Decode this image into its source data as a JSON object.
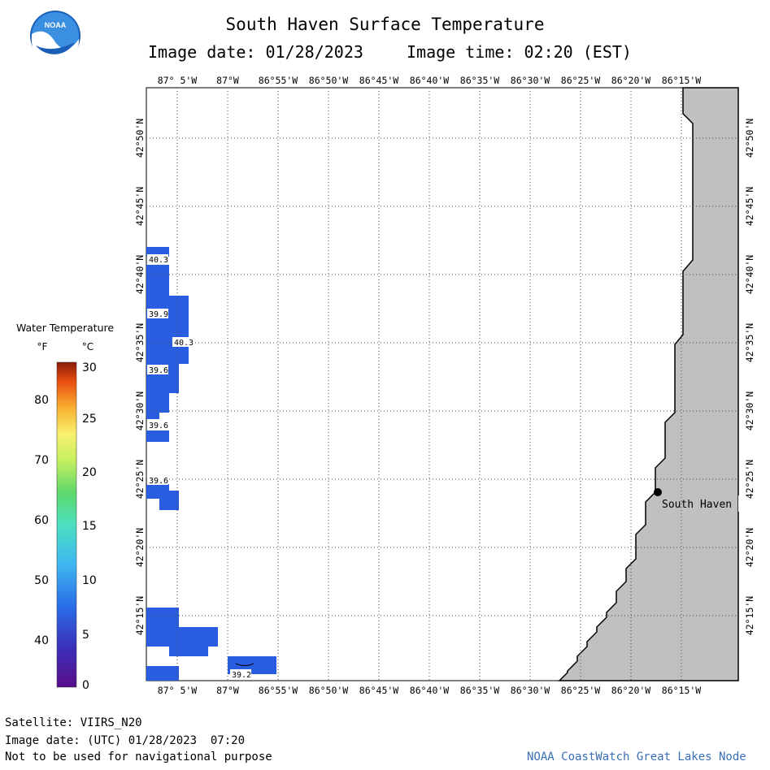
{
  "title": "South Haven Surface Temperature",
  "image_date_local": "Image date: 01/28/2023",
  "image_time_local": "Image time: 02:20 (EST)",
  "logo_text": "NOAA",
  "lon_labels": [
    "87° 5'W",
    "87°W",
    "86°55'W",
    "86°50'W",
    "86°45'W",
    "86°40'W",
    "86°35'W",
    "86°30'W",
    "86°25'W",
    "86°20'W",
    "86°15'W"
  ],
  "lat_labels": [
    "42°50'N",
    "42°45'N",
    "42°40'N",
    "42°35'N",
    "42°30'N",
    "42°25'N",
    "42°20'N",
    "42°15'N"
  ],
  "station": "South Haven",
  "temperature_labels": [
    "40.3",
    "39.9",
    "40.3",
    "39.6",
    "39.6",
    "39.6",
    "39.2"
  ],
  "legend": {
    "title": "Water Temperature",
    "unit_f": "°F",
    "unit_c": "°C",
    "f_ticks": [
      "80",
      "70",
      "60",
      "50",
      "40"
    ],
    "c_ticks": [
      "30",
      "25",
      "20",
      "15",
      "10",
      "5",
      "0"
    ]
  },
  "footer": {
    "satellite": "Satellite: VIIRS_N20",
    "utc_date": "Image date: (UTC) 01/28/2023  07:20",
    "disclaimer": "Not to be used for navigational purpose",
    "credit": "NOAA CoastWatch Great Lakes Node"
  },
  "colors": {
    "water_cold": "#2a5ee0",
    "land": "#c0c0c0",
    "credit": "#3b6fb5"
  }
}
